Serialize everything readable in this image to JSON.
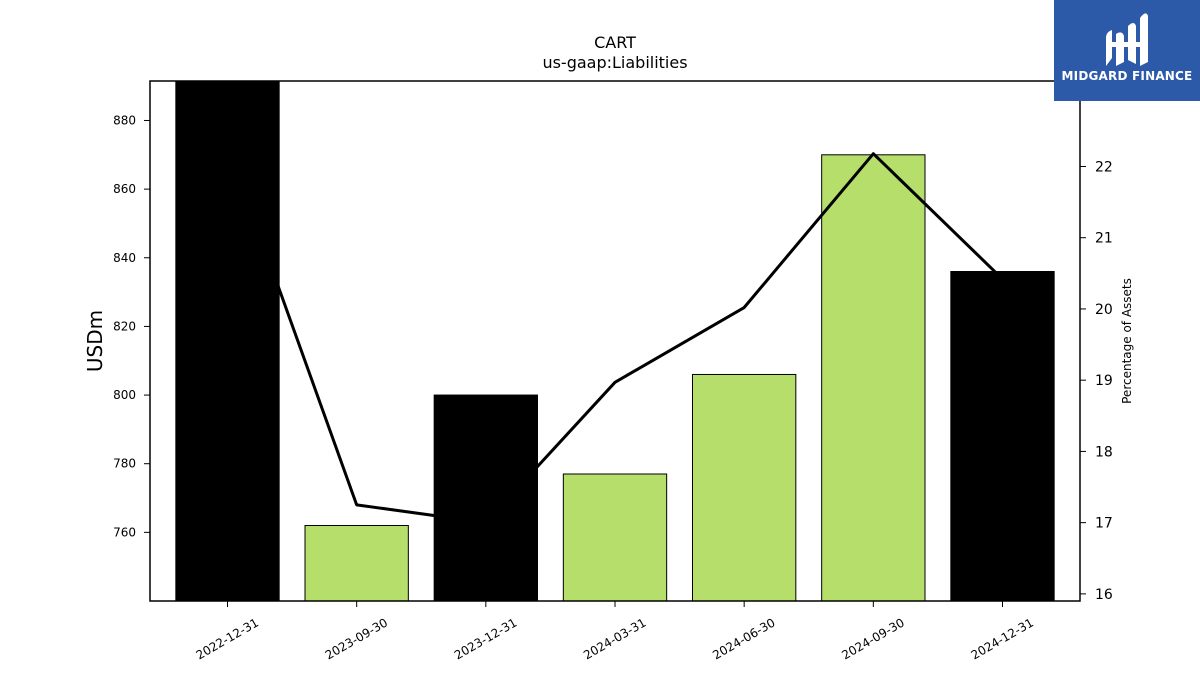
{
  "brand": {
    "name": "MIDGARD FINANCE",
    "color": "#2c5aa8"
  },
  "colors": {
    "bar_dark": "#000000",
    "bar_light": "#b5de6b",
    "line": "#000000"
  },
  "chart_data": {
    "type": "bar",
    "title": "CART",
    "subtitle": "us-gaap:Liabilities",
    "ylabel": "USDm",
    "y2label": "Percentage of Assets",
    "categories": [
      "2022-12-31",
      "2023-09-30",
      "2023-12-31",
      "2024-03-31",
      "2024-06-30",
      "2024-09-30",
      "2024-12-31"
    ],
    "series": [
      {
        "kind": "bar",
        "values": [
          892,
          762,
          800,
          777,
          806,
          870,
          836
        ],
        "colors": [
          "dark",
          "light",
          "dark",
          "light",
          "light",
          "light",
          "dark"
        ]
      },
      {
        "kind": "line",
        "axis": "right",
        "values": [
          22.3,
          17.25,
          17.0,
          18.97,
          20.02,
          22.18,
          20.42
        ]
      }
    ],
    "ylim": [
      740,
      891.5
    ],
    "yticks": [
      760,
      780,
      800,
      820,
      840,
      860,
      880
    ],
    "y2lim": [
      15.9,
      23.2
    ],
    "y2ticks": [
      16,
      17,
      18,
      19,
      20,
      21,
      22
    ],
    "grid": false
  }
}
